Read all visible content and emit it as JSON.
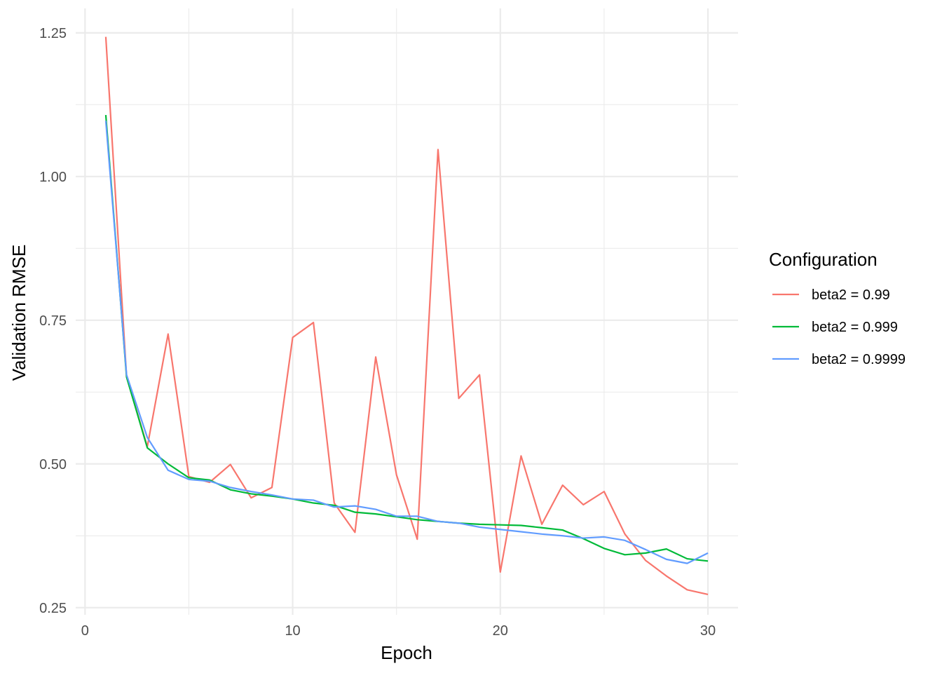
{
  "chart_data": {
    "type": "line",
    "xlabel": "Epoch",
    "ylabel": "Validation RMSE",
    "xlim": [
      -0.45,
      31.45
    ],
    "ylim": [
      0.2375,
      1.2925
    ],
    "x_ticks": [
      0,
      10,
      20,
      30
    ],
    "x_tick_labels": [
      "0",
      "10",
      "20",
      "30"
    ],
    "y_ticks": [
      0.25,
      0.5,
      0.75,
      1.0,
      1.25
    ],
    "y_tick_labels": [
      "0.25",
      "0.50",
      "0.75",
      "1.00",
      "1.25"
    ],
    "grid": true,
    "legend": {
      "title": "Configuration",
      "position": "right"
    },
    "x": [
      1,
      2,
      3,
      4,
      5,
      6,
      7,
      8,
      9,
      10,
      11,
      12,
      13,
      14,
      15,
      16,
      17,
      18,
      19,
      20,
      21,
      22,
      23,
      24,
      25,
      26,
      27,
      28,
      29,
      30
    ],
    "series": [
      {
        "name": "beta2 = 0.99",
        "color": "#F8766D",
        "values": [
          1.243,
          0.652,
          0.53,
          0.726,
          0.478,
          0.468,
          0.499,
          0.441,
          0.459,
          0.72,
          0.746,
          0.432,
          0.381,
          0.686,
          0.481,
          0.369,
          1.047,
          0.614,
          0.655,
          0.312,
          0.514,
          0.395,
          0.463,
          0.429,
          0.452,
          0.378,
          0.332,
          0.305,
          0.281,
          0.273
        ]
      },
      {
        "name": "beta2 = 0.999",
        "color": "#00BA38",
        "values": [
          1.107,
          0.651,
          0.528,
          0.5,
          0.476,
          0.472,
          0.455,
          0.448,
          0.444,
          0.439,
          0.432,
          0.428,
          0.416,
          0.413,
          0.408,
          0.403,
          0.4,
          0.397,
          0.395,
          0.394,
          0.393,
          0.389,
          0.385,
          0.37,
          0.353,
          0.342,
          0.345,
          0.352,
          0.335,
          0.331
        ]
      },
      {
        "name": "beta2 = 0.9999",
        "color": "#619CFF",
        "values": [
          1.097,
          0.655,
          0.546,
          0.489,
          0.473,
          0.47,
          0.459,
          0.452,
          0.446,
          0.439,
          0.437,
          0.425,
          0.427,
          0.421,
          0.409,
          0.409,
          0.4,
          0.397,
          0.39,
          0.386,
          0.382,
          0.378,
          0.375,
          0.371,
          0.373,
          0.367,
          0.351,
          0.334,
          0.327,
          0.345
        ]
      }
    ]
  }
}
